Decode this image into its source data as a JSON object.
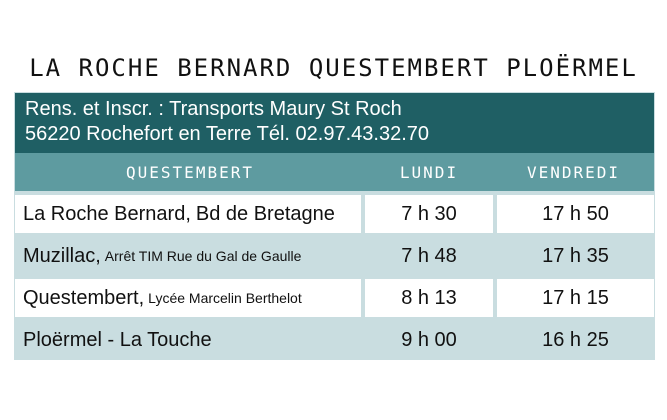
{
  "title": "LA ROCHE BERNARD QUESTEMBERT PLOËRMEL",
  "info": {
    "line1": "Rens. et Inscr. : Transports Maury  St Roch",
    "line2": "56220 Rochefort en Terre Tél. 02.97.43.32.70"
  },
  "header": {
    "col1": "QUESTEMBERT",
    "col2": "LUNDI",
    "col3": "VENDREDI"
  },
  "rows": [
    {
      "place": "La Roche Bernard,",
      "detail": "Bd de Bretagne",
      "lundi": "7 h 30",
      "vendredi": "17 h 50"
    },
    {
      "place": "Muzillac,",
      "detail": "Arrêt TIM  Rue du Gal de Gaulle",
      "lundi": "7 h 48",
      "vendredi": "17 h 35"
    },
    {
      "place": "Questembert,",
      "detail": "Lycée Marcelin Berthelot",
      "lundi": "8 h 13",
      "vendredi": "17 h 15"
    },
    {
      "place": "Ploërmel - La Touche",
      "detail": "",
      "lundi": "9 h 00",
      "vendredi": "16 h 25"
    }
  ]
}
